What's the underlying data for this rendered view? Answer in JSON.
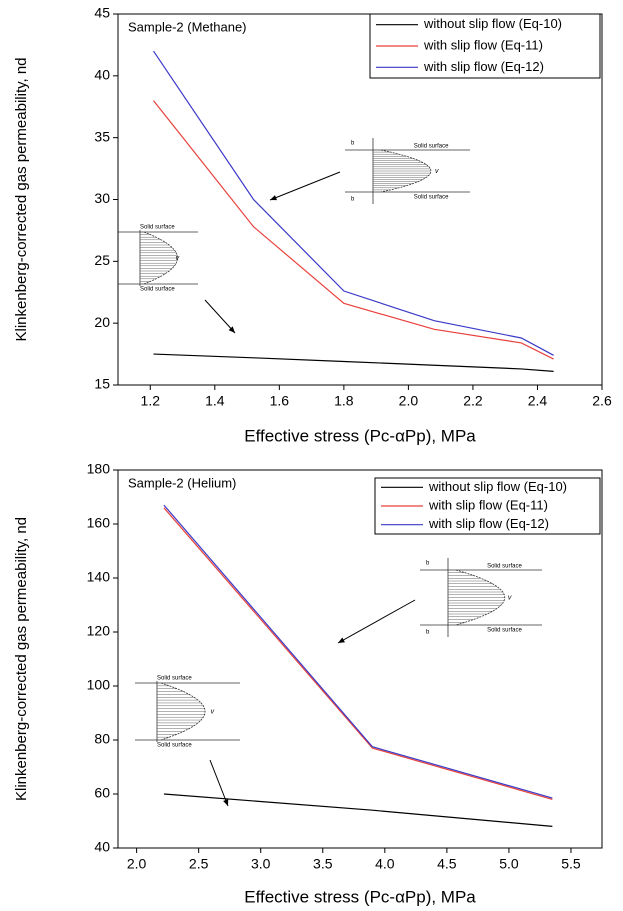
{
  "chart_data": [
    {
      "type": "line",
      "title": "Sample-2 (Methane)",
      "x_label": "Effective stress (Pc-αPp), MPa",
      "y_label": "Klinkenberg-corrected gas permeability, nd",
      "x": [
        1.21,
        1.52,
        1.8,
        2.08,
        2.35,
        2.45
      ],
      "series": [
        {
          "name": "without slip flow (Eq-10)",
          "color": "#000000",
          "values": [
            17.5,
            17.2,
            16.9,
            16.6,
            16.3,
            16.1
          ]
        },
        {
          "name": "with slip flow (Eq-11)",
          "color": "#e8413c",
          "values": [
            38,
            27.8,
            21.6,
            19.5,
            18.4,
            17.1
          ]
        },
        {
          "name": "with slip flow (Eq-12)",
          "color": "#3a3ac8",
          "values": [
            42,
            30,
            22.6,
            20.2,
            18.8,
            17.4
          ]
        }
      ],
      "xlim": [
        1.1,
        2.6
      ],
      "xticks": [
        1.2,
        1.4,
        1.6,
        1.8,
        {
          "value": 2,
          "label": "2.0"
        },
        2.2,
        2.4,
        2.6
      ],
      "ylim": [
        15,
        45
      ],
      "yticks": [
        15,
        20,
        25,
        30,
        35,
        40,
        45
      ],
      "annotations": [
        "Solid surface",
        "Solid surface",
        "b",
        "b",
        "v",
        "Solid surface",
        "Solid surface",
        "v"
      ]
    },
    {
      "type": "line",
      "title": "Sample-2 (Helium)",
      "x_label": "Effective stress (Pc-αPp), MPa",
      "y_label": "Klinkenberg-corrected gas permeability, nd",
      "x": [
        2.22,
        3.9,
        5.35
      ],
      "series": [
        {
          "name": "without slip flow (Eq-10)",
          "color": "#000000",
          "values": [
            60,
            54,
            48
          ]
        },
        {
          "name": "with slip flow (Eq-11)",
          "color": "#e8413c",
          "values": [
            166,
            77,
            58
          ]
        },
        {
          "name": "with slip flow (Eq-12)",
          "color": "#3a3ac8",
          "values": [
            167,
            77.5,
            58.5
          ]
        }
      ],
      "xlim": [
        1.85,
        5.75
      ],
      "xticks": [
        {
          "value": 2,
          "label": "2.0"
        },
        2.5,
        {
          "value": 3,
          "label": "3.0"
        },
        3.5,
        {
          "value": 4,
          "label": "4.0"
        },
        4.5,
        {
          "value": 5,
          "label": "5.0"
        },
        5.5
      ],
      "ylim": [
        40,
        180
      ],
      "yticks": [
        40,
        60,
        80,
        100,
        120,
        140,
        160,
        180
      ],
      "annotations": [
        "Solid surface",
        "Solid surface",
        "b",
        "b",
        "v",
        "Solid surface",
        "Solid surface",
        "v"
      ]
    }
  ]
}
